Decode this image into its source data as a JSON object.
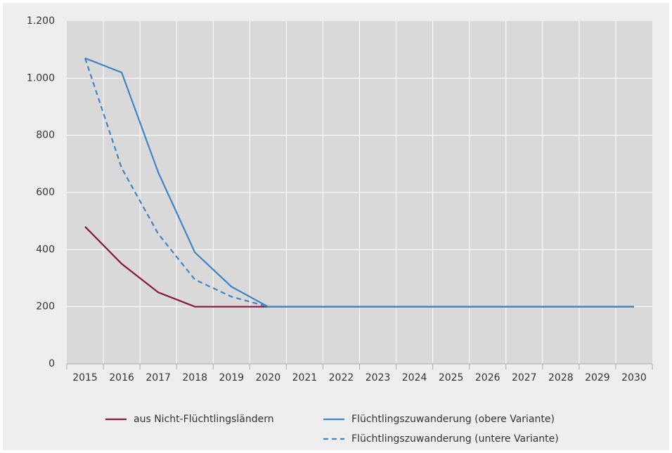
{
  "chart_data": {
    "type": "line",
    "categories": [
      "2015",
      "2016",
      "2017",
      "2018",
      "2019",
      "2020",
      "2021",
      "2022",
      "2023",
      "2024",
      "2025",
      "2026",
      "2027",
      "2028",
      "2029",
      "2030"
    ],
    "series": [
      {
        "name": "aus Nicht-Flüchtlingsländern",
        "color": "#8a1538",
        "dashed": false,
        "values": [
          480,
          350,
          250,
          200,
          200,
          200,
          200,
          200,
          200,
          200,
          200,
          200,
          200,
          200,
          200,
          200
        ]
      },
      {
        "name": "Flüchtlingszuwanderung (obere Variante)",
        "color": "#3d85c6",
        "dashed": false,
        "values": [
          1070,
          1020,
          670,
          390,
          270,
          200,
          200,
          200,
          200,
          200,
          200,
          200,
          200,
          200,
          200,
          200
        ]
      },
      {
        "name": "Flüchtlingszuwanderung (untere Variante)",
        "color": "#3d85c6",
        "dashed": true,
        "values": [
          1070,
          685,
          455,
          295,
          235,
          200,
          null,
          null,
          null,
          null,
          null,
          null,
          null,
          null,
          null,
          null
        ]
      }
    ],
    "ylim": [
      0,
      1200
    ],
    "yticks": [
      0,
      200,
      400,
      600,
      800,
      {
        "value": 1000,
        "label": "1.000"
      },
      {
        "value": 1200,
        "label": "1.200"
      }
    ],
    "grid": true
  }
}
